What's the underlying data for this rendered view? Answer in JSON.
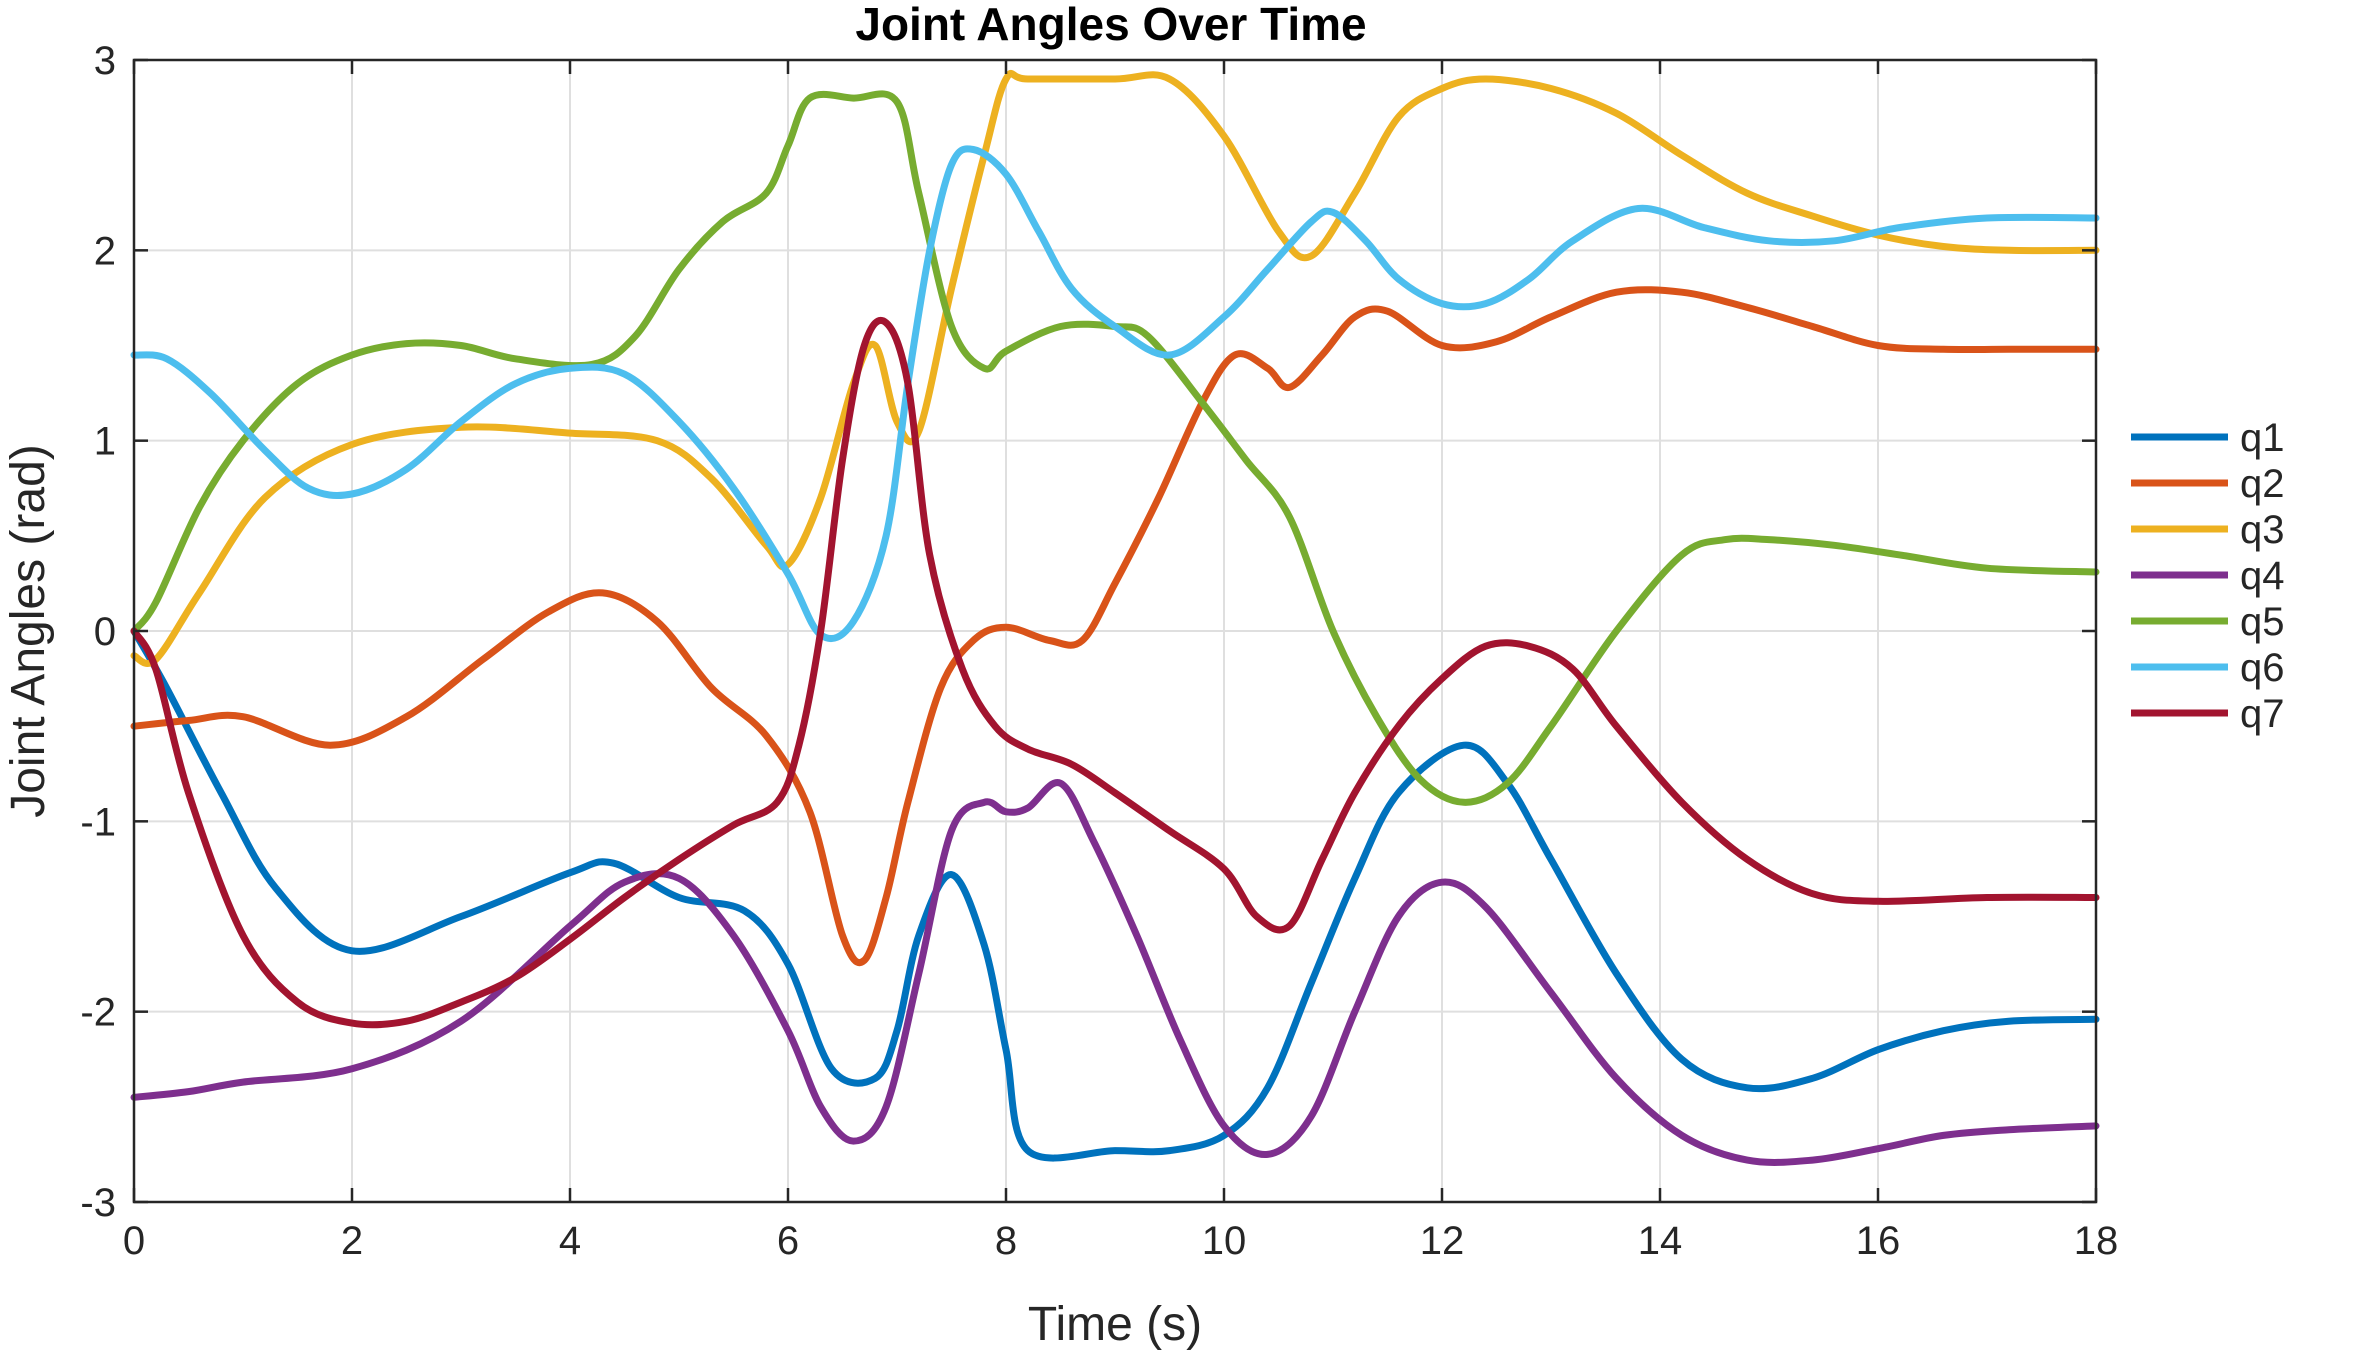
{
  "chart_data": {
    "type": "line",
    "title": "Joint Angles Over Time",
    "xlabel": "Time (s)",
    "ylabel": "Joint Angles (rad)",
    "xlim": [
      0,
      18
    ],
    "ylim": [
      -3,
      3
    ],
    "xticks": [
      0,
      2,
      4,
      6,
      8,
      10,
      12,
      14,
      16,
      18
    ],
    "yticks": [
      -3,
      -2,
      -1,
      0,
      1,
      2,
      3
    ],
    "xtick_labels": [
      "0",
      "2",
      "4",
      "6",
      "8",
      "10",
      "12",
      "14",
      "16",
      "18"
    ],
    "ytick_labels": [
      "-3",
      "-2",
      "-1",
      "0",
      "1",
      "2",
      "3"
    ],
    "grid": true,
    "legend_position": "right",
    "series": [
      {
        "name": "q1",
        "color": "#0072BD",
        "x": [
          0,
          0.3,
          0.8,
          1.3,
          2.0,
          3.0,
          4.0,
          4.4,
          5.0,
          5.6,
          6.0,
          6.4,
          6.8,
          7.0,
          7.2,
          7.5,
          7.8,
          8.0,
          8.2,
          9.0,
          9.5,
          10.0,
          10.4,
          10.8,
          11.2,
          11.6,
          12.2,
          12.6,
          13.0,
          13.6,
          14.2,
          14.8,
          15.4,
          16.0,
          16.6,
          17.2,
          18.0
        ],
        "y": [
          0,
          -0.3,
          -0.85,
          -1.35,
          -1.68,
          -1.5,
          -1.27,
          -1.22,
          -1.4,
          -1.47,
          -1.75,
          -2.3,
          -2.35,
          -2.1,
          -1.6,
          -1.28,
          -1.65,
          -2.2,
          -2.73,
          -2.73,
          -2.73,
          -2.65,
          -2.4,
          -1.85,
          -1.3,
          -0.85,
          -0.6,
          -0.8,
          -1.2,
          -1.8,
          -2.25,
          -2.4,
          -2.35,
          -2.2,
          -2.1,
          -2.05,
          -2.04
        ]
      },
      {
        "name": "q2",
        "color": "#D95319",
        "x": [
          0,
          0.5,
          1.0,
          1.8,
          2.5,
          3.2,
          3.8,
          4.3,
          4.8,
          5.3,
          5.8,
          6.2,
          6.5,
          6.7,
          6.9,
          7.1,
          7.4,
          7.7,
          8.0,
          8.4,
          8.7,
          9.0,
          9.4,
          9.8,
          10.1,
          10.4,
          10.6,
          10.9,
          11.2,
          11.5,
          12.0,
          12.5,
          13.0,
          13.6,
          14.2,
          14.8,
          15.4,
          16.0,
          16.6,
          17.2,
          18.0
        ],
        "y": [
          -0.5,
          -0.47,
          -0.45,
          -0.6,
          -0.45,
          -0.15,
          0.1,
          0.2,
          0.05,
          -0.3,
          -0.55,
          -0.95,
          -1.6,
          -1.73,
          -1.4,
          -0.9,
          -0.3,
          -0.05,
          0.02,
          -0.05,
          -0.05,
          0.25,
          0.7,
          1.2,
          1.45,
          1.38,
          1.28,
          1.45,
          1.65,
          1.68,
          1.5,
          1.52,
          1.65,
          1.78,
          1.78,
          1.7,
          1.6,
          1.5,
          1.48,
          1.48,
          1.48
        ]
      },
      {
        "name": "q3",
        "color": "#EDB120",
        "x": [
          0,
          0.2,
          0.6,
          1.2,
          2.0,
          3.0,
          4.0,
          4.8,
          5.3,
          5.8,
          6.0,
          6.3,
          6.6,
          6.8,
          7.0,
          7.2,
          7.5,
          7.8,
          8.0,
          8.2,
          9.0,
          9.5,
          10.0,
          10.5,
          10.8,
          11.2,
          11.6,
          12.0,
          12.4,
          13.0,
          13.6,
          14.2,
          14.8,
          15.4,
          16.0,
          16.6,
          17.2,
          18.0
        ],
        "y": [
          -0.13,
          -0.15,
          0.2,
          0.7,
          0.98,
          1.07,
          1.04,
          1.0,
          0.8,
          0.45,
          0.35,
          0.7,
          1.3,
          1.5,
          1.1,
          1.05,
          1.8,
          2.5,
          2.9,
          2.9,
          2.9,
          2.9,
          2.6,
          2.1,
          1.97,
          2.3,
          2.7,
          2.85,
          2.9,
          2.85,
          2.72,
          2.5,
          2.3,
          2.18,
          2.08,
          2.02,
          2.0,
          2.0
        ]
      },
      {
        "name": "q4",
        "color": "#7E2F8E",
        "x": [
          0,
          0.5,
          1.0,
          2.0,
          3.0,
          4.0,
          4.5,
          5.0,
          5.5,
          6.0,
          6.3,
          6.6,
          6.9,
          7.2,
          7.5,
          7.8,
          8.0,
          8.2,
          8.5,
          8.8,
          9.2,
          9.6,
          10.0,
          10.4,
          10.8,
          11.2,
          11.6,
          12.0,
          12.4,
          13.0,
          13.6,
          14.2,
          14.8,
          15.4,
          16.0,
          16.6,
          17.2,
          18.0
        ],
        "y": [
          -2.45,
          -2.42,
          -2.37,
          -2.3,
          -2.05,
          -1.55,
          -1.32,
          -1.3,
          -1.6,
          -2.1,
          -2.5,
          -2.68,
          -2.5,
          -1.8,
          -1.05,
          -0.9,
          -0.95,
          -0.93,
          -0.8,
          -1.1,
          -1.6,
          -2.15,
          -2.6,
          -2.75,
          -2.55,
          -2.0,
          -1.5,
          -1.32,
          -1.45,
          -1.9,
          -2.35,
          -2.65,
          -2.78,
          -2.78,
          -2.72,
          -2.65,
          -2.62,
          -2.6
        ]
      },
      {
        "name": "q5",
        "color": "#77AC30",
        "x": [
          0,
          0.2,
          0.6,
          1.0,
          1.5,
          2.0,
          2.5,
          3.0,
          3.5,
          4.2,
          4.6,
          5.0,
          5.4,
          5.8,
          6.0,
          6.2,
          6.6,
          7.0,
          7.2,
          7.5,
          7.8,
          8.0,
          8.5,
          9.0,
          9.3,
          9.8,
          10.2,
          10.6,
          11.0,
          11.4,
          11.8,
          12.2,
          12.6,
          13.0,
          13.6,
          14.2,
          14.6,
          15.0,
          15.6,
          16.2,
          17.0,
          18.0
        ],
        "y": [
          0.0,
          0.15,
          0.65,
          1.0,
          1.3,
          1.45,
          1.51,
          1.5,
          1.43,
          1.4,
          1.55,
          1.9,
          2.15,
          2.3,
          2.55,
          2.8,
          2.8,
          2.78,
          2.3,
          1.6,
          1.38,
          1.47,
          1.6,
          1.6,
          1.55,
          1.2,
          0.9,
          0.6,
          0.0,
          -0.45,
          -0.78,
          -0.9,
          -0.8,
          -0.5,
          0.0,
          0.4,
          0.48,
          0.48,
          0.45,
          0.4,
          0.33,
          0.31
        ]
      },
      {
        "name": "q6",
        "color": "#4DBEEE",
        "x": [
          0,
          0.3,
          0.7,
          1.2,
          1.6,
          2.0,
          2.5,
          3.0,
          3.5,
          4.0,
          4.5,
          5.0,
          5.5,
          6.0,
          6.3,
          6.6,
          6.9,
          7.1,
          7.3,
          7.5,
          7.7,
          8.0,
          8.3,
          8.6,
          9.0,
          9.5,
          10.0,
          10.4,
          10.8,
          11.0,
          11.3,
          11.6,
          12.0,
          12.4,
          12.8,
          13.2,
          13.8,
          14.4,
          15.0,
          15.6,
          16.2,
          17.0,
          18.0
        ],
        "y": [
          1.45,
          1.43,
          1.25,
          0.95,
          0.75,
          0.72,
          0.85,
          1.1,
          1.3,
          1.38,
          1.35,
          1.1,
          0.75,
          0.3,
          -0.02,
          0.05,
          0.5,
          1.3,
          2.0,
          2.45,
          2.53,
          2.4,
          2.1,
          1.8,
          1.6,
          1.45,
          1.65,
          1.9,
          2.15,
          2.2,
          2.05,
          1.85,
          1.72,
          1.72,
          1.85,
          2.05,
          2.22,
          2.12,
          2.05,
          2.05,
          2.12,
          2.17,
          2.17
        ]
      },
      {
        "name": "q7",
        "color": "#A2142F",
        "x": [
          0,
          0.2,
          0.5,
          1.0,
          1.5,
          2.0,
          2.5,
          3.0,
          3.5,
          4.0,
          4.5,
          5.0,
          5.5,
          5.9,
          6.1,
          6.3,
          6.5,
          6.7,
          6.9,
          7.1,
          7.3,
          7.6,
          7.9,
          8.2,
          8.6,
          9.0,
          9.5,
          10.0,
          10.3,
          10.6,
          10.9,
          11.2,
          11.6,
          12.0,
          12.4,
          12.8,
          13.2,
          13.6,
          14.2,
          14.8,
          15.4,
          16.0,
          17.0,
          18.0
        ],
        "y": [
          0.0,
          -0.2,
          -0.85,
          -1.6,
          -1.95,
          -2.06,
          -2.05,
          -1.95,
          -1.82,
          -1.62,
          -1.4,
          -1.2,
          -1.02,
          -0.9,
          -0.6,
          0.0,
          0.9,
          1.5,
          1.62,
          1.3,
          0.4,
          -0.2,
          -0.5,
          -0.62,
          -0.7,
          -0.85,
          -1.05,
          -1.25,
          -1.5,
          -1.55,
          -1.2,
          -0.85,
          -0.5,
          -0.25,
          -0.08,
          -0.08,
          -0.2,
          -0.5,
          -0.9,
          -1.2,
          -1.38,
          -1.42,
          -1.4,
          -1.4
        ]
      }
    ]
  }
}
